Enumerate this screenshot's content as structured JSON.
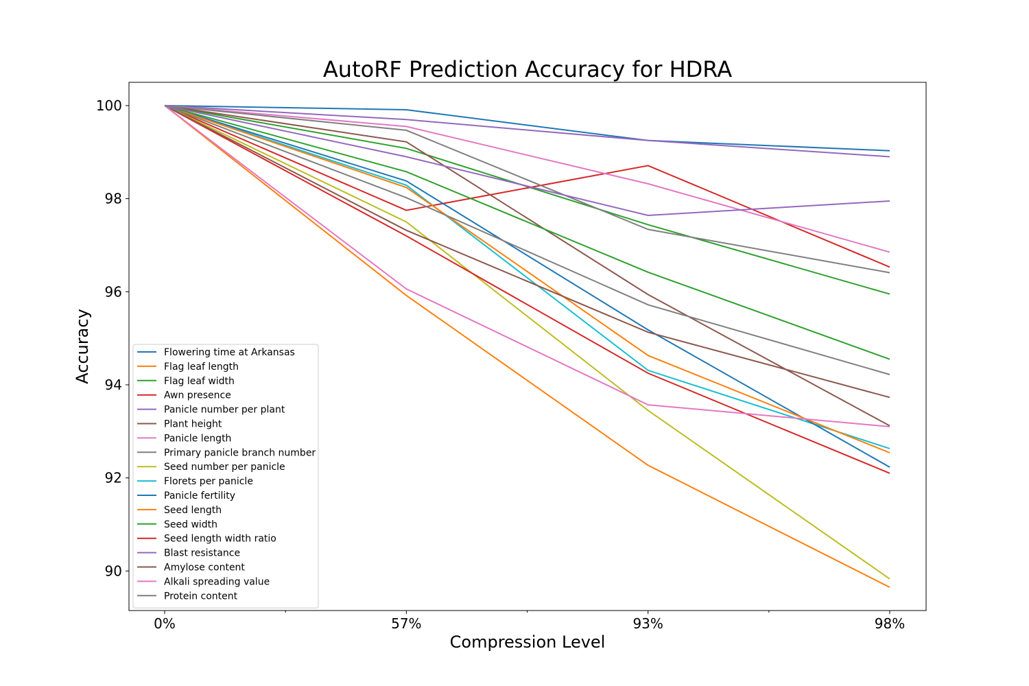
{
  "chart_data": {
    "type": "line",
    "title": "AutoRF Prediction Accuracy for HDRA",
    "xlabel": "Compression Level",
    "ylabel": "Accuracy",
    "categories": [
      "0%",
      "57%",
      "93%",
      "98%"
    ],
    "yticks": [
      "90",
      "92",
      "94",
      "96",
      "98",
      "100"
    ],
    "ylim": [
      89.15,
      100.5
    ],
    "grid": false,
    "legend_position": "lower-left",
    "series": [
      {
        "name": "Flowering time at Arkansas",
        "color": "#1f77b4",
        "values": [
          100,
          99.91,
          99.25,
          99.03
        ]
      },
      {
        "name": "Flag leaf length",
        "color": "#ff7f0e",
        "values": [
          100,
          95.92,
          92.27,
          89.65
        ]
      },
      {
        "name": "Flag leaf width",
        "color": "#2ca02c",
        "values": [
          100,
          99.08,
          97.44,
          95.95
        ]
      },
      {
        "name": "Awn presence",
        "color": "#d62728",
        "values": [
          100,
          97.75,
          98.71,
          96.53
        ]
      },
      {
        "name": "Panicle number per plant",
        "color": "#9467bd",
        "values": [
          100,
          99.7,
          99.25,
          98.9
        ]
      },
      {
        "name": "Plant height",
        "color": "#8c564b",
        "values": [
          100,
          99.22,
          95.94,
          93.12
        ]
      },
      {
        "name": "Panicle length",
        "color": "#e377c2",
        "values": [
          100,
          99.55,
          98.32,
          96.85
        ]
      },
      {
        "name": "Primary panicle branch number",
        "color": "#7f7f7f",
        "values": [
          100,
          99.47,
          97.34,
          96.41
        ]
      },
      {
        "name": "Seed number per panicle",
        "color": "#bcbd22",
        "values": [
          100,
          97.5,
          93.45,
          89.83
        ]
      },
      {
        "name": "Florets per panicle",
        "color": "#17becf",
        "values": [
          100,
          98.29,
          94.31,
          92.63
        ]
      },
      {
        "name": "Panicle fertility",
        "color": "#1f77b4",
        "values": [
          100,
          98.38,
          95.18,
          92.23
        ]
      },
      {
        "name": "Seed length",
        "color": "#ff7f0e",
        "values": [
          100,
          98.24,
          94.63,
          92.54
        ]
      },
      {
        "name": "Seed width",
        "color": "#2ca02c",
        "values": [
          100,
          98.58,
          96.42,
          94.55
        ]
      },
      {
        "name": "Seed length width ratio",
        "color": "#d62728",
        "values": [
          100,
          97.2,
          94.25,
          92.1
        ]
      },
      {
        "name": "Blast resistance",
        "color": "#9467bd",
        "values": [
          100,
          98.9,
          97.64,
          97.95
        ]
      },
      {
        "name": "Amylose content",
        "color": "#8c564b",
        "values": [
          100,
          97.32,
          95.13,
          93.73
        ]
      },
      {
        "name": "Alkali spreading value",
        "color": "#e377c2",
        "values": [
          100,
          96.06,
          93.57,
          93.1
        ]
      },
      {
        "name": "Protein content",
        "color": "#7f7f7f",
        "values": [
          100,
          98.02,
          95.72,
          94.22
        ]
      }
    ]
  }
}
